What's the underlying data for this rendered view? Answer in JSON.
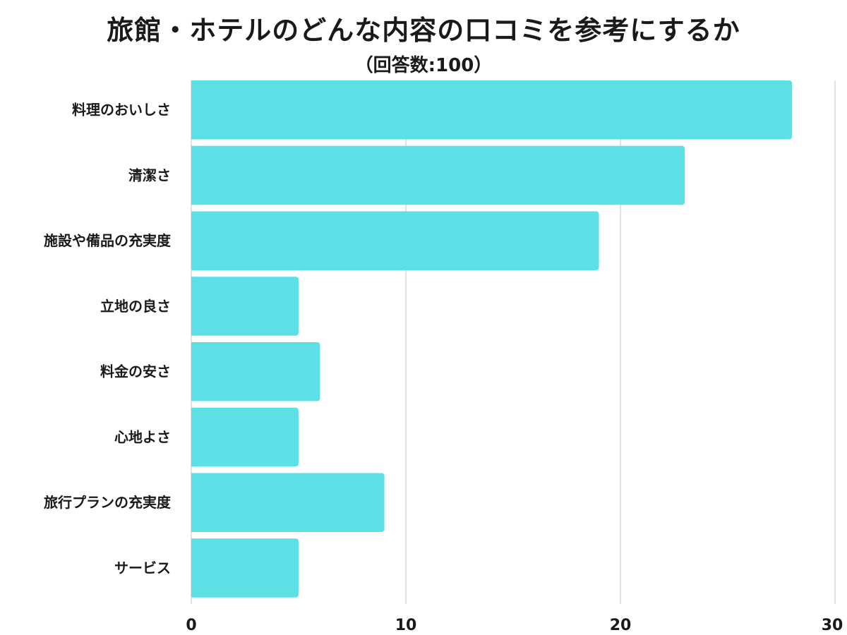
{
  "chart_data": {
    "type": "bar",
    "orientation": "horizontal",
    "title": "旅館・ホテルのどんな内容の口コミを参考にするか",
    "subtitle": "（回答数:100）",
    "categories": [
      "料理のおいしさ",
      "清潔さ",
      "施設や備品の充実度",
      "立地の良さ",
      "料金の安さ",
      "心地よさ",
      "旅行プランの充実度",
      "サービス"
    ],
    "values": [
      28,
      23,
      19,
      5,
      6,
      5,
      9,
      5
    ],
    "xlim": [
      0,
      30
    ],
    "xticks": [
      "0",
      "10",
      "20",
      "30"
    ],
    "xtick_values": [
      0,
      10,
      20,
      30
    ],
    "xlabel": "",
    "ylabel": "",
    "grid": "vertical",
    "legend": "none",
    "colors": {
      "bar": "#5ce0e6",
      "grid": "#d9d9d9",
      "text": "#1a1a1a"
    }
  }
}
